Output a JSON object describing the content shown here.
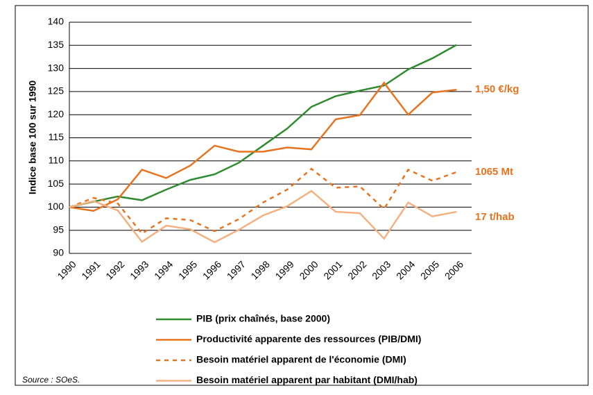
{
  "chart_data": {
    "type": "line",
    "y_label": "Indice base 100 sur 1990",
    "source": "Source : SOeS.",
    "categories": [
      "1990",
      "1991",
      "1992",
      "1993",
      "1994",
      "1995",
      "1996",
      "1997",
      "1998",
      "1999",
      "2000",
      "2001",
      "2002",
      "2003",
      "2004",
      "2005",
      "2006"
    ],
    "ylim": [
      90,
      140
    ],
    "yticks": [
      90,
      95,
      100,
      105,
      110,
      115,
      120,
      125,
      130,
      135,
      140
    ],
    "grid": true,
    "series": [
      {
        "name": "PIB (prix chaînés, base 2000)",
        "color": "#2e8b2e",
        "style": "solid",
        "values": [
          100,
          101.2,
          102.3,
          101.5,
          103.8,
          105.9,
          107.1,
          109.6,
          113.3,
          117,
          121.7,
          124,
          125.2,
          126.3,
          129.8,
          132.2,
          135.1
        ]
      },
      {
        "name": "Productivité apparente des ressources (PIB/DMI)",
        "color": "#e8731f",
        "style": "solid",
        "values": [
          100,
          99.2,
          101.7,
          108.1,
          106.3,
          109,
          113.3,
          112,
          112,
          112.9,
          112.5,
          119,
          119.9,
          126.9,
          120,
          124.8,
          125.4
        ]
      },
      {
        "name": "Besoin matériel apparent de l'économie (DMI)",
        "color": "#e8731f",
        "style": "dashed",
        "values": [
          100,
          102,
          100.8,
          94.3,
          97.6,
          97.2,
          94.8,
          97.4,
          101,
          103.8,
          108.3,
          104.2,
          104.5,
          99.6,
          108.1,
          105.7,
          107.6
        ]
      },
      {
        "name": "Besoin matériel apparent par habitant (DMI/hab)",
        "color": "#f5b080",
        "style": "solid",
        "values": [
          100,
          101.3,
          99.3,
          92.5,
          96,
          95.2,
          92.4,
          95.1,
          98.2,
          100.2,
          103.5,
          99,
          98.7,
          93.2,
          101,
          98,
          99
        ]
      }
    ],
    "annotations": [
      {
        "text": "1,50 €/kg",
        "color": "#e8731f",
        "y": 125.4
      },
      {
        "text": "1065 Mt",
        "color": "#e8731f",
        "y": 107.6
      },
      {
        "text": "17 t/hab",
        "color": "#e8731f",
        "y": 97.8
      }
    ]
  }
}
